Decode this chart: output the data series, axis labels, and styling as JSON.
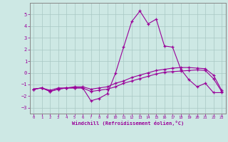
{
  "background_color": "#cde8e4",
  "grid_color": "#a8c8c4",
  "line_color": "#990099",
  "x_hours": [
    0,
    1,
    2,
    3,
    4,
    5,
    6,
    7,
    8,
    9,
    10,
    11,
    12,
    13,
    14,
    15,
    16,
    17,
    18,
    19,
    20,
    21,
    22,
    23
  ],
  "series1": [
    -1.4,
    -1.3,
    -1.6,
    -1.4,
    -1.3,
    -1.3,
    -1.3,
    -2.4,
    -2.2,
    -1.8,
    -0.05,
    2.2,
    4.4,
    5.3,
    4.2,
    4.6,
    2.3,
    2.2,
    0.3,
    -0.6,
    -1.2,
    -0.9,
    -1.7,
    -1.7
  ],
  "series2": [
    -1.4,
    -1.3,
    -1.6,
    -1.4,
    -1.3,
    -1.3,
    -1.3,
    -1.6,
    -1.5,
    -1.4,
    -1.2,
    -0.9,
    -0.7,
    -0.5,
    -0.3,
    -0.1,
    0.05,
    0.1,
    0.15,
    0.2,
    0.25,
    0.2,
    -0.5,
    -1.6
  ],
  "series3": [
    -1.4,
    -1.3,
    -1.5,
    -1.3,
    -1.3,
    -1.2,
    -1.2,
    -1.4,
    -1.3,
    -1.2,
    -0.9,
    -0.7,
    -0.4,
    -0.2,
    0.0,
    0.2,
    0.3,
    0.4,
    0.45,
    0.45,
    0.4,
    0.35,
    -0.2,
    -1.5
  ],
  "ylim": [
    -3.5,
    6.0
  ],
  "yticks": [
    -3,
    -2,
    -1,
    0,
    1,
    2,
    3,
    4,
    5
  ],
  "xlim": [
    -0.5,
    23.5
  ],
  "xticks": [
    0,
    1,
    2,
    3,
    4,
    5,
    6,
    7,
    8,
    9,
    10,
    11,
    12,
    13,
    14,
    15,
    16,
    17,
    18,
    19,
    20,
    21,
    22,
    23
  ],
  "xlabel": "Windchill (Refroidissement éolien,°C)"
}
